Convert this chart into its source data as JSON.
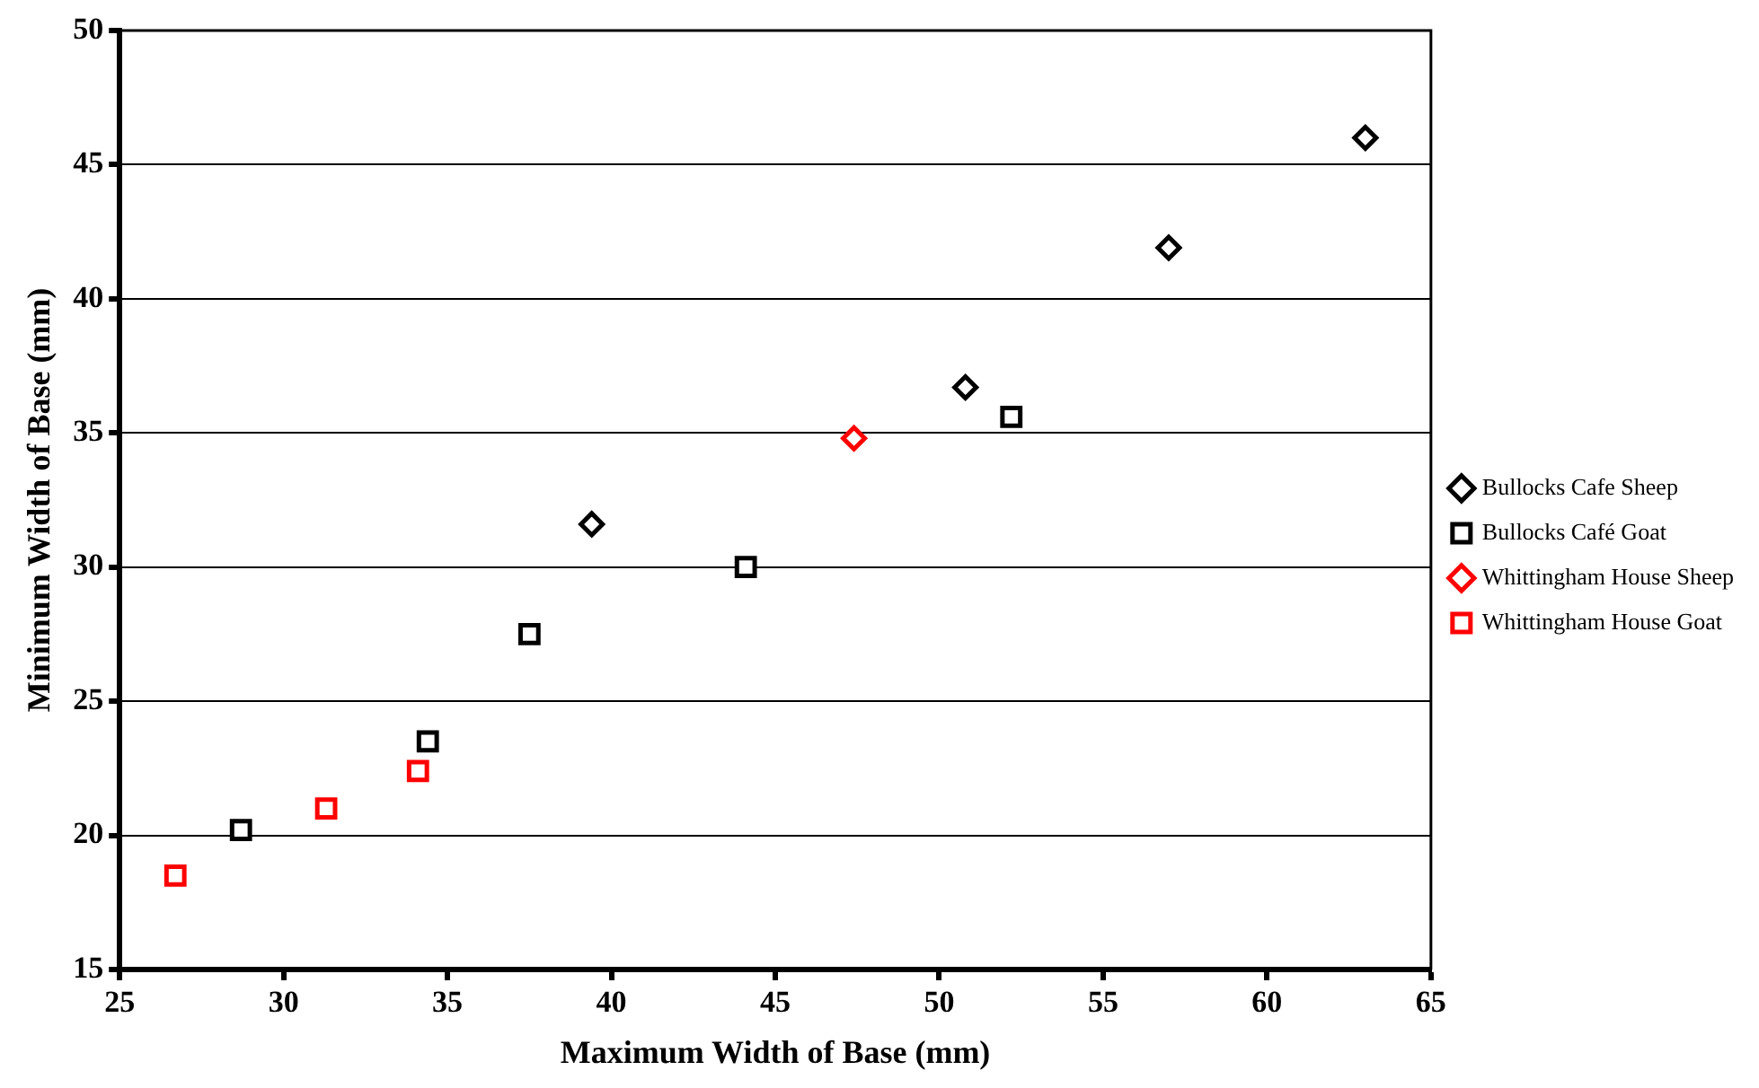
{
  "chart_data": {
    "type": "scatter",
    "xlabel": "Maximum Width of Base (mm)",
    "ylabel": "Minimum Width of Base (mm)",
    "xlim": [
      25,
      65
    ],
    "xticks": [
      25,
      30,
      35,
      40,
      45,
      50,
      55,
      60,
      65
    ],
    "ylim": [
      15,
      50
    ],
    "yticks": [
      15,
      20,
      25,
      30,
      35,
      40,
      45,
      50
    ],
    "grid": "y",
    "legend": "right",
    "series": [
      {
        "name": "Bullocks Cafe Sheep",
        "color": "#000000",
        "marker": "diamond",
        "x": [
          39.4,
          50.8,
          57.0,
          63.0
        ],
        "values": [
          31.6,
          36.7,
          41.9,
          46.0
        ]
      },
      {
        "name": "Bullocks Café Goat",
        "color": "#000000",
        "marker": "square",
        "x": [
          28.7,
          34.4,
          37.5,
          44.1,
          52.2
        ],
        "values": [
          20.2,
          23.5,
          27.5,
          30.0,
          35.6
        ]
      },
      {
        "name": "Whittingham House Sheep",
        "color": "#ff0000",
        "marker": "diamond",
        "x": [
          47.4
        ],
        "values": [
          34.8
        ]
      },
      {
        "name": "Whittingham House Goat",
        "color": "#ff0000",
        "marker": "square",
        "x": [
          26.7,
          31.3,
          34.1
        ],
        "values": [
          18.5,
          21.0,
          22.4
        ]
      }
    ]
  }
}
